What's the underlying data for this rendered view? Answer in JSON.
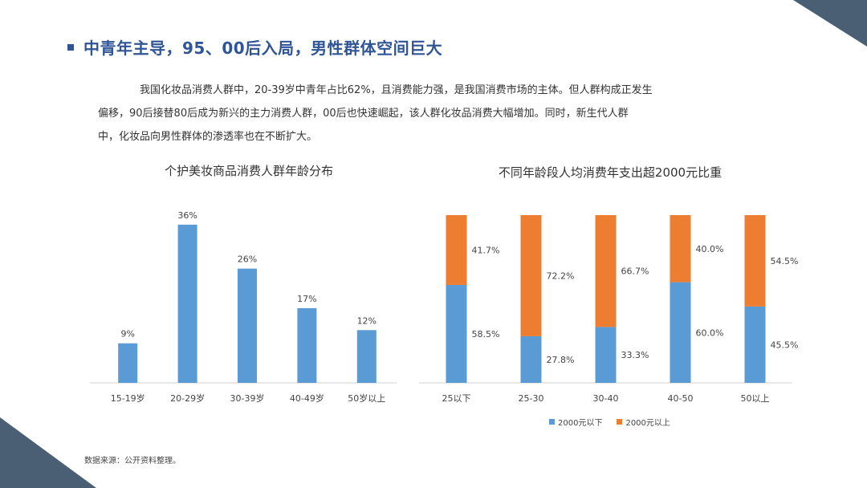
{
  "title": "中青年主导，95、00后入局，男性群体空间巨大",
  "intro_lines": [
    "我国化妆品消费人群中，20-39岁中青年占比62%，且消费能力强，是我国消费市场的主体。但人群构成正发生",
    "偏移，90后接替80后成为新兴的主力消费人群，00后也快速崛起，该人群化妆品消费大幅增加。同时，新生代人群",
    "中，化妆品向男性群体的渗透率也在不断扩大。"
  ],
  "source": "数据来源：公开资料整理。",
  "colors": {
    "blue": "#5b9bd5",
    "orange": "#ed7d31",
    "title": "#2f5597"
  },
  "chart_data": [
    {
      "type": "bar",
      "title": "个护美妆商品消费人群年龄分布",
      "categories": [
        "15-19岁",
        "20-29岁",
        "30-39岁",
        "40-49岁",
        "50岁以上"
      ],
      "values": [
        9,
        36,
        26,
        17,
        12
      ],
      "value_labels": [
        "9%",
        "36%",
        "26%",
        "17%",
        "12%"
      ],
      "ylim": [
        0,
        40
      ],
      "grid": false
    },
    {
      "type": "bar",
      "stacked": true,
      "title": "不同年龄段人均消费年支出超2000元比重",
      "categories": [
        "25以下",
        "25-30",
        "30-40",
        "40-50",
        "50以上"
      ],
      "series": [
        {
          "name": "2000元以下",
          "values": [
            58.5,
            27.8,
            33.3,
            60.0,
            45.5
          ],
          "labels": [
            "58.5%",
            "27.8%",
            "33.3%",
            "60.0%",
            "45.5%"
          ]
        },
        {
          "name": "2000元以上",
          "values": [
            41.7,
            72.2,
            66.7,
            40.0,
            54.5
          ],
          "labels": [
            "41.7%",
            "72.2%",
            "66.7%",
            "40.0%",
            "54.5%"
          ]
        }
      ],
      "ylim": [
        0,
        100
      ],
      "legend": "bottom",
      "grid": false
    }
  ]
}
